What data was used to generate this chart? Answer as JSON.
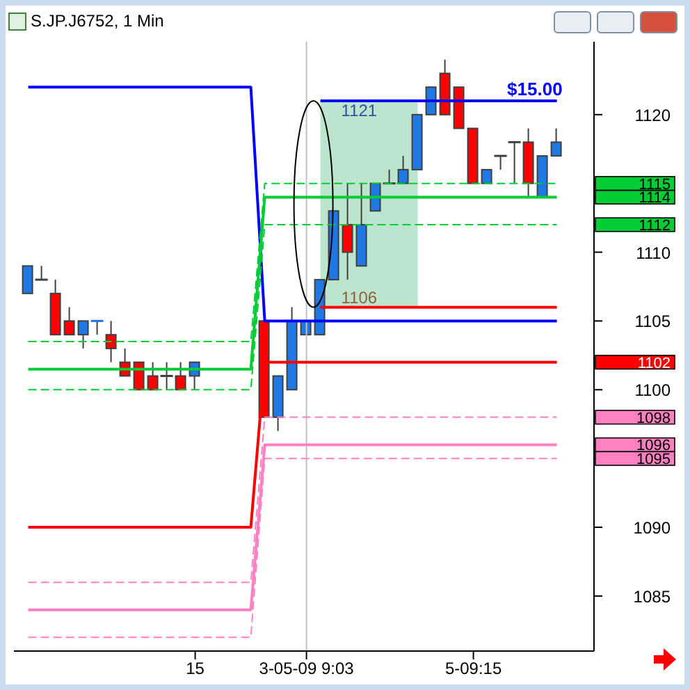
{
  "chart_data": {
    "type": "candlestick",
    "title": "S.JP.J6752, 1 Min",
    "categories": [
      null,
      null,
      null,
      null,
      null,
      null,
      null,
      null,
      null,
      null,
      null,
      null,
      "15",
      null,
      null,
      null,
      null,
      null,
      null,
      null,
      "3-05-09  9:03",
      null,
      null,
      null,
      null,
      null,
      null,
      null,
      null,
      null,
      null,
      null,
      "5-09:15",
      null,
      null,
      null,
      null,
      null,
      null
    ],
    "ohlc": [
      [
        1107,
        1109,
        1107,
        1109
      ],
      [
        1108,
        1109,
        1108,
        1108
      ],
      [
        1107,
        1108,
        1104,
        1104
      ],
      [
        1105,
        1106,
        1104,
        1104
      ],
      [
        1104,
        1105,
        1103,
        1105
      ],
      [
        1105,
        1105,
        1104,
        1105
      ],
      [
        1104,
        1105,
        1102,
        1103
      ],
      [
        1102,
        1103,
        1101,
        1101
      ],
      [
        1102,
        1102,
        1100,
        1100
      ],
      [
        1101,
        1102,
        1100,
        1100
      ],
      [
        1101,
        1102,
        1100,
        1101
      ],
      [
        1101,
        1102,
        1100,
        1100
      ],
      [
        1101,
        1102,
        1100,
        1102
      ],
      null,
      null,
      null,
      null,
      [
        1105,
        1105,
        1098,
        1098
      ],
      [
        1098,
        1101,
        1097,
        1101
      ],
      [
        1100,
        1106,
        1100,
        1105
      ],
      [
        1104,
        1105,
        1104,
        1105
      ],
      [
        1104,
        1108,
        1104,
        1108
      ],
      [
        1108,
        1113,
        1108,
        1113
      ],
      [
        1112,
        1115,
        1108,
        1110
      ],
      [
        1109,
        1115,
        1109,
        1112
      ],
      [
        1113,
        1115,
        1113,
        1115
      ],
      [
        1115,
        1116,
        1115,
        1115
      ],
      [
        1115,
        1117,
        1115,
        1116
      ],
      [
        1116,
        1120,
        1116,
        1120
      ],
      [
        1120,
        1122,
        1120,
        1122
      ],
      [
        1123,
        1124,
        1120,
        1120
      ],
      [
        1122,
        1122,
        1119,
        1119
      ],
      [
        1119,
        1119,
        1115,
        1115
      ],
      [
        1115,
        1116,
        1115,
        1116
      ],
      [
        1117,
        1117,
        1116,
        1117
      ],
      [
        1118,
        1118,
        1115,
        1118
      ],
      [
        1118,
        1119,
        1114,
        1115
      ],
      [
        1114,
        1117,
        1114,
        1117
      ],
      [
        1117,
        1119,
        1117,
        1118
      ]
    ],
    "colors": [
      "#1e78e6",
      "#404040",
      "#ff0000",
      "#ff0000",
      "#1e78e6",
      "#1e78e6",
      "#ff0000",
      "#ff0000",
      "#ff0000",
      "#ff0000",
      "#404040",
      "#ff0000",
      "#1e78e6",
      null,
      null,
      null,
      null,
      "#ff0000",
      "#1e78e6",
      "#1e78e6",
      "#1e78e6",
      "#1e78e6",
      "#1e78e6",
      "#ff0000",
      "#1e78e6",
      "#1e78e6",
      "#404040",
      "#1e78e6",
      "#1e78e6",
      "#1e78e6",
      "#ff0000",
      "#ff0000",
      "#ff0000",
      "#1e78e6",
      "#404040",
      "#404040",
      "#ff0000",
      "#1e78e6",
      "#1e78e6"
    ],
    "series": [
      {
        "type": "line",
        "color": "#0000ff",
        "values": [
          null,
          null,
          null,
          null,
          null,
          null,
          null,
          null,
          null,
          null,
          null,
          null,
          null,
          null,
          null,
          null,
          null,
          null,
          null,
          null,
          null,
          1121,
          1121,
          1121,
          1121,
          1121,
          1121,
          1121,
          1121,
          1121,
          1121,
          1121,
          1121,
          1121,
          1121,
          1121,
          1121,
          1121,
          1121
        ]
      },
      {
        "type": "line",
        "color": "#8fd4ad",
        "values": [
          null,
          null,
          null,
          null,
          null,
          null,
          null,
          null,
          null,
          null,
          null,
          null,
          null,
          null,
          null,
          null,
          null,
          null,
          null,
          null,
          null,
          null,
          null,
          null,
          null,
          null,
          null,
          null,
          null,
          null,
          null,
          null,
          null,
          null,
          null,
          null,
          null,
          null,
          null
        ],
        "upper": [
          null,
          null,
          null,
          null,
          null,
          null,
          null,
          null,
          null,
          null,
          null,
          null,
          null,
          null,
          null,
          null,
          null,
          null,
          null,
          null,
          null,
          1121,
          1121,
          1121,
          1121,
          1121,
          1121,
          1121,
          1121,
          null,
          null,
          null,
          null,
          null,
          null,
          null,
          null,
          null,
          null
        ],
        "lower": [
          null,
          null,
          null,
          null,
          null,
          null,
          null,
          null,
          null,
          null,
          null,
          null,
          null,
          null,
          null,
          null,
          null,
          null,
          null,
          null,
          null,
          1106,
          1106,
          1106,
          1106,
          1106,
          1106,
          1106,
          1106,
          null,
          null,
          null,
          null,
          null,
          null,
          null,
          null,
          null,
          null
        ]
      },
      {
        "type": "line",
        "color": "#0000ff",
        "values": [
          1122,
          1122,
          1122,
          1122,
          1122,
          1122,
          1122,
          1122,
          1122,
          1122,
          1122,
          1122,
          1122,
          1122,
          1122,
          1122,
          1122,
          1105,
          1105,
          1105,
          1105,
          1105,
          1105,
          1105,
          1105,
          1105,
          1105,
          1105,
          1105,
          1105,
          1105,
          1105,
          1105,
          1105,
          1105,
          1105,
          1105,
          1105,
          1105
        ]
      },
      {
        "type": "line",
        "color": "#ff0000",
        "values": [
          null,
          null,
          null,
          null,
          null,
          null,
          null,
          null,
          null,
          null,
          null,
          null,
          null,
          null,
          null,
          null,
          null,
          null,
          null,
          null,
          null,
          1106,
          1106,
          1106,
          1106,
          1106,
          1106,
          1106,
          1106,
          1106,
          1106,
          1106,
          1106,
          1106,
          1106,
          1106,
          1106,
          1106,
          1106
        ]
      },
      {
        "type": "line",
        "color": "#00cc33",
        "line_style": "dashed",
        "values": [
          1103.5,
          1103.5,
          1103.5,
          1103.5,
          1103.5,
          1103.5,
          1103.5,
          1103.5,
          1103.5,
          1103.5,
          1103.5,
          1103.5,
          1103.5,
          1103.5,
          1103.5,
          1103.5,
          1103.5,
          1115,
          1115,
          1115,
          1115,
          1115,
          1115,
          1115,
          1115,
          1115,
          1115,
          1115,
          1115,
          1115,
          1115,
          1115,
          1115,
          1115,
          1115,
          1115,
          1115,
          1115,
          1115
        ]
      },
      {
        "type": "line",
        "color": "#00cc33",
        "values": [
          1101.5,
          1101.5,
          1101.5,
          1101.5,
          1101.5,
          1101.5,
          1101.5,
          1101.5,
          1101.5,
          1101.5,
          1101.5,
          1101.5,
          1101.5,
          1101.5,
          1101.5,
          1101.5,
          1101.5,
          1114,
          1114,
          1114,
          1114,
          1114,
          1114,
          1114,
          1114,
          1114,
          1114,
          1114,
          1114,
          1114,
          1114,
          1114,
          1114,
          1114,
          1114,
          1114,
          1114,
          1114,
          1114
        ]
      },
      {
        "type": "line",
        "color": "#00cc33",
        "line_style": "dashed",
        "values": [
          1100,
          1100,
          1100,
          1100,
          1100,
          1100,
          1100,
          1100,
          1100,
          1100,
          1100,
          1100,
          1100,
          1100,
          1100,
          1100,
          1100,
          1112,
          1112,
          1112,
          1112,
          1112,
          1112,
          1112,
          1112,
          1112,
          1112,
          1112,
          1112,
          1112,
          1112,
          1112,
          1112,
          1112,
          1112,
          1112,
          1112,
          1112,
          1112
        ]
      },
      {
        "type": "line",
        "color": "#ff0000",
        "values": [
          1090,
          1090,
          1090,
          1090,
          1090,
          1090,
          1090,
          1090,
          1090,
          1090,
          1090,
          1090,
          1090,
          1090,
          1090,
          1090,
          1090,
          1102,
          1102,
          1102,
          1102,
          1102,
          1102,
          1102,
          1102,
          1102,
          1102,
          1102,
          1102,
          1102,
          1102,
          1102,
          1102,
          1102,
          1102,
          1102,
          1102,
          1102,
          1102
        ]
      },
      {
        "type": "line",
        "color": "#ff80c0",
        "line_style": "dashed",
        "values": [
          1086,
          1086,
          1086,
          1086,
          1086,
          1086,
          1086,
          1086,
          1086,
          1086,
          1086,
          1086,
          1086,
          1086,
          1086,
          1086,
          1086,
          1098,
          1098,
          1098,
          1098,
          1098,
          1098,
          1098,
          1098,
          1098,
          1098,
          1098,
          1098,
          1098,
          1098,
          1098,
          1098,
          1098,
          1098,
          1098,
          1098,
          1098,
          1098
        ]
      },
      {
        "type": "line",
        "color": "#ff80c0",
        "values": [
          1084,
          1084,
          1084,
          1084,
          1084,
          1084,
          1084,
          1084,
          1084,
          1084,
          1084,
          1084,
          1084,
          1084,
          1084,
          1084,
          1084,
          1096,
          1096,
          1096,
          1096,
          1096,
          1096,
          1096,
          1096,
          1096,
          1096,
          1096,
          1096,
          1096,
          1096,
          1096,
          1096,
          1096,
          1096,
          1096,
          1096,
          1096,
          1096
        ]
      },
      {
        "type": "line",
        "color": "#ff80c0",
        "line_style": "dashed",
        "values": [
          1082,
          1082,
          1082,
          1082,
          1082,
          1082,
          1082,
          1082,
          1082,
          1082,
          1082,
          1082,
          1082,
          1082,
          1082,
          1082,
          1082,
          1095,
          1095,
          1095,
          1095,
          1095,
          1095,
          1095,
          1095,
          1095,
          1095,
          1095,
          1095,
          1095,
          1095,
          1095,
          1095,
          1095,
          1095,
          1095,
          1095,
          1095,
          1095
        ]
      }
    ],
    "ylim": [
      1081,
      1125.3
    ],
    "yticks": [
      1085,
      1090,
      {
        "value": 1095,
        "label": "1095"
      },
      {
        "value": 1096,
        "label": "1096"
      },
      {
        "value": 1098,
        "label": "1098"
      },
      1100,
      {
        "value": 1102,
        "label": "1102"
      },
      1105,
      1110,
      {
        "value": 1112,
        "label": "1112"
      },
      {
        "value": 1114,
        "label": "1114"
      },
      {
        "value": 1115,
        "label": "1115"
      },
      1120
    ],
    "ref_lines": [
      {
        "axis": "x",
        "value": "3-05-09  9:03",
        "color": "#c0c0c0"
      }
    ],
    "annotations": [
      {
        "text": "1121",
        "y": 1121
      },
      {
        "text": "1106",
        "y": 1106
      },
      {
        "text": "$15.00",
        "y": 1121
      }
    ],
    "marker": "none"
  }
}
